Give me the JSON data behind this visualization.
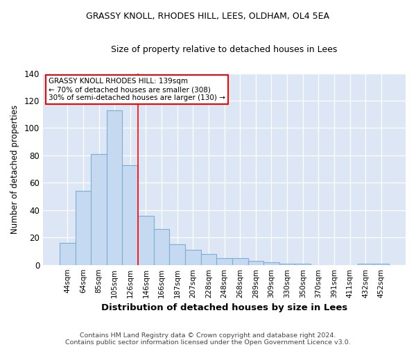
{
  "title": "GRASSY KNOLL, RHODES HILL, LEES, OLDHAM, OL4 5EA",
  "subtitle": "Size of property relative to detached houses in Lees",
  "xlabel": "Distribution of detached houses by size in Lees",
  "ylabel": "Number of detached properties",
  "categories": [
    "44sqm",
    "64sqm",
    "85sqm",
    "105sqm",
    "126sqm",
    "146sqm",
    "166sqm",
    "187sqm",
    "207sqm",
    "228sqm",
    "248sqm",
    "268sqm",
    "289sqm",
    "309sqm",
    "330sqm",
    "350sqm",
    "370sqm",
    "391sqm",
    "411sqm",
    "432sqm",
    "452sqm"
  ],
  "values": [
    16,
    54,
    81,
    113,
    73,
    36,
    26,
    15,
    11,
    8,
    5,
    5,
    3,
    2,
    1,
    1,
    0,
    0,
    0,
    1,
    1
  ],
  "bar_color": "#c5d9f1",
  "bar_edge_color": "#7bafd4",
  "red_line_index": 4.5,
  "annotation_title": "GRASSY KNOLL RHODES HILL: 139sqm",
  "annotation_line2": "← 70% of detached houses are smaller (308)",
  "annotation_line3": "30% of semi-detached houses are larger (130) →",
  "ylim": [
    0,
    140
  ],
  "yticks": [
    0,
    20,
    40,
    60,
    80,
    100,
    120,
    140
  ],
  "footnote1": "Contains HM Land Registry data © Crown copyright and database right 2024.",
  "footnote2": "Contains public sector information licensed under the Open Government Licence v3.0.",
  "figure_bg_color": "#ffffff",
  "plot_bg_color": "#dce6f5"
}
